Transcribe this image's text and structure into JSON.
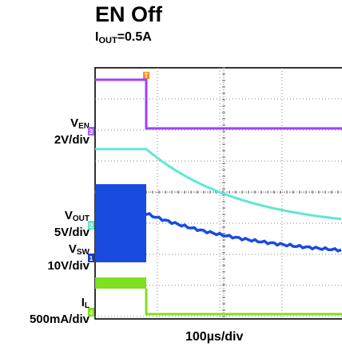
{
  "chart_data": {
    "type": "line",
    "title": "EN Off",
    "subtitle": "I_OUT=0.5A",
    "subtitle_parts": {
      "prefix": "I",
      "sub": "OUT",
      "suffix": "=0.5A"
    },
    "xlabel": "100µs/div",
    "x_unit": "µs",
    "xlim": [
      0,
      310
    ],
    "grid": true,
    "trigger_marker": "T",
    "channels": [
      {
        "id": "3",
        "name_main": "V",
        "name_sub": "EN",
        "scale": "2V/div",
        "color": "#a040ff",
        "marker_color": "#b060ff"
      },
      {
        "id": "2",
        "name_main": "V",
        "name_sub": "OUT",
        "scale": "5V/div",
        "color": "#5ee8d0",
        "marker_color": "#5ee8d0"
      },
      {
        "id": "1",
        "name_main": "V",
        "name_sub": "SW",
        "scale": "10V/div",
        "color": "#1a4be0",
        "marker_color": "#1a3cc8"
      },
      {
        "id": "4",
        "name_main": "I",
        "name_sub": "L",
        "scale": "500mA/div",
        "color": "#7ee01e",
        "marker_color": "#7ee01e"
      }
    ]
  }
}
